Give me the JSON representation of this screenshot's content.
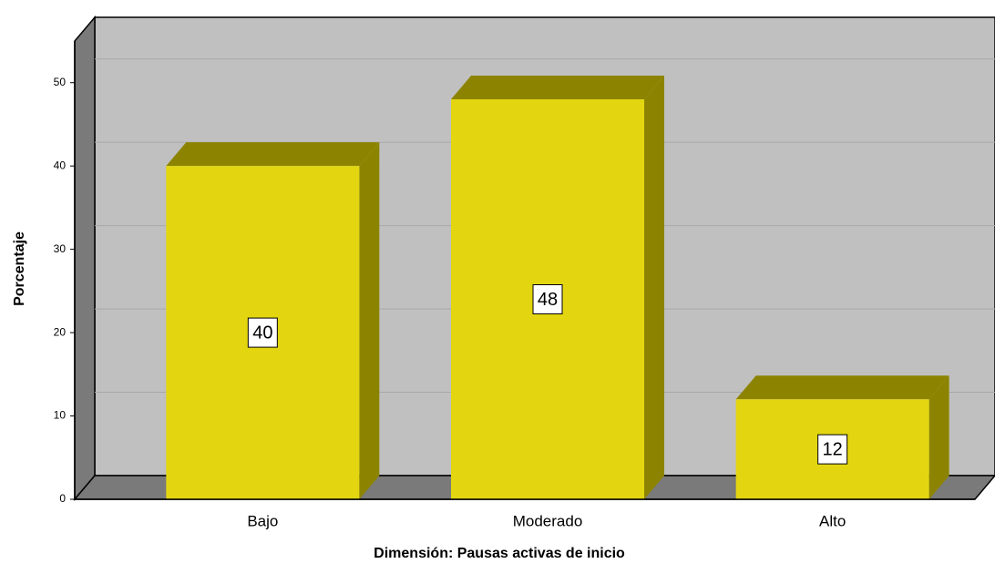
{
  "chart_data": {
    "type": "bar3d",
    "x_label": "Dimensión: Pausas activas de inicio",
    "y_label": "Porcentaje",
    "categories": [
      "Bajo",
      "Moderado",
      "Alto"
    ],
    "values": [
      40,
      48,
      12
    ],
    "color": "#e3d610",
    "ylim": [
      0,
      55
    ],
    "yticks": [
      0,
      10,
      20,
      30,
      40,
      50
    ],
    "grid": true
  }
}
